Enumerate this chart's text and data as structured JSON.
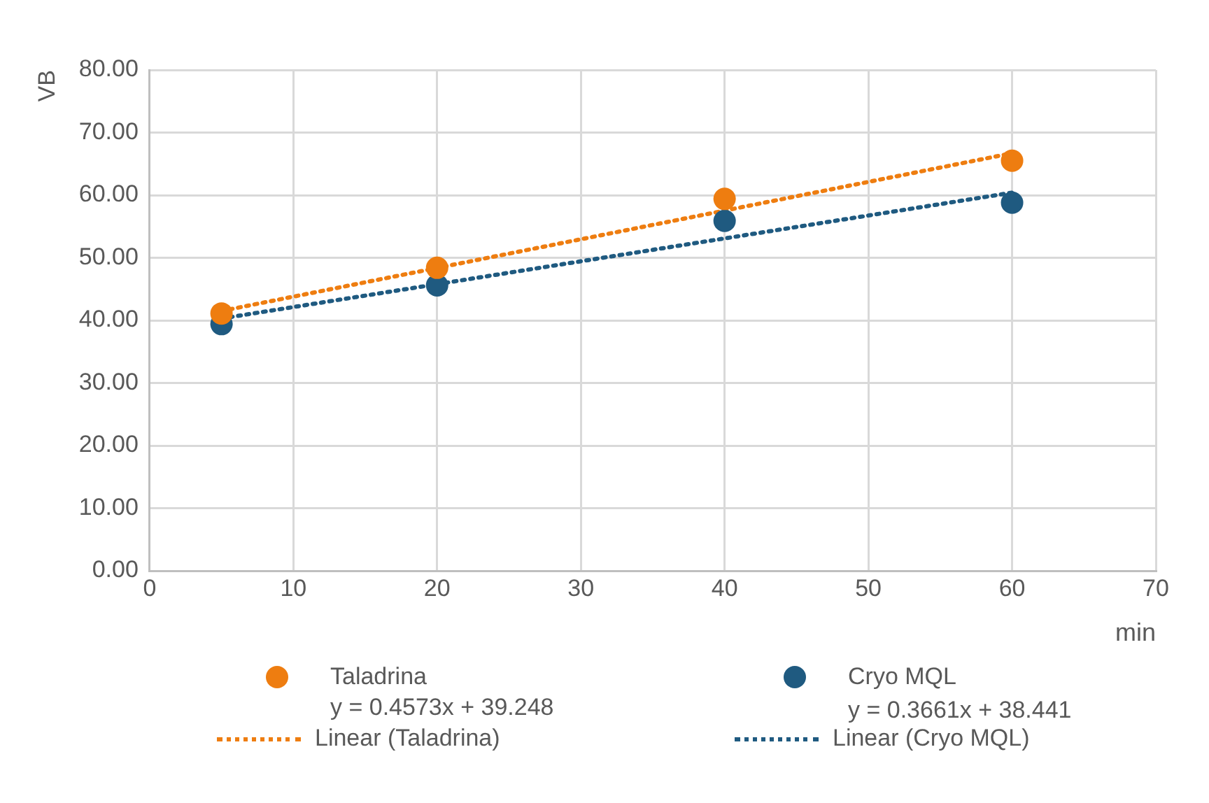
{
  "chart_data": {
    "type": "scatter",
    "xlabel": "min",
    "ylabel": "VB",
    "xlim": [
      0,
      70
    ],
    "xticks": [
      0,
      10,
      20,
      30,
      40,
      50,
      60,
      70
    ],
    "ylim": [
      0,
      80
    ],
    "yticks": [
      {
        "value": 0,
        "label": "0.00"
      },
      {
        "value": 10,
        "label": "10.00"
      },
      {
        "value": 20,
        "label": "20.00"
      },
      {
        "value": 30,
        "label": "30.00"
      },
      {
        "value": 40,
        "label": "40.00"
      },
      {
        "value": 50,
        "label": "50.00"
      },
      {
        "value": 60,
        "label": "60.00"
      },
      {
        "value": 70,
        "label": "70.00"
      },
      {
        "value": 80,
        "label": "80.00"
      }
    ],
    "grid": true,
    "legend": "bottom",
    "marker": "circle",
    "series": [
      {
        "name": "Taladrina",
        "color": "#ee7d10",
        "x": [
          5,
          20,
          40,
          60
        ],
        "values": [
          41.1,
          48.4,
          59.4,
          65.5
        ]
      },
      {
        "name": "Cryo MQL",
        "color": "#1f5a80",
        "x": [
          5,
          20,
          40,
          60
        ],
        "values": [
          39.4,
          45.6,
          55.9,
          58.8
        ]
      },
      {
        "name": "Linear (Taladrina)",
        "type": "line",
        "line_style": "dotted",
        "marker": "none",
        "color": "#ee7d10",
        "x": [
          5,
          60
        ],
        "values": [
          41.5,
          66.7
        ]
      },
      {
        "name": "Linear (Cryo MQL)",
        "type": "line",
        "line_style": "dotted",
        "marker": "none",
        "color": "#1f5a80",
        "x": [
          5,
          60
        ],
        "values": [
          40.3,
          60.4
        ]
      }
    ],
    "annotations": [
      "y = 0.4573x + 39.248",
      "y = 0.3661x + 38.441"
    ]
  }
}
